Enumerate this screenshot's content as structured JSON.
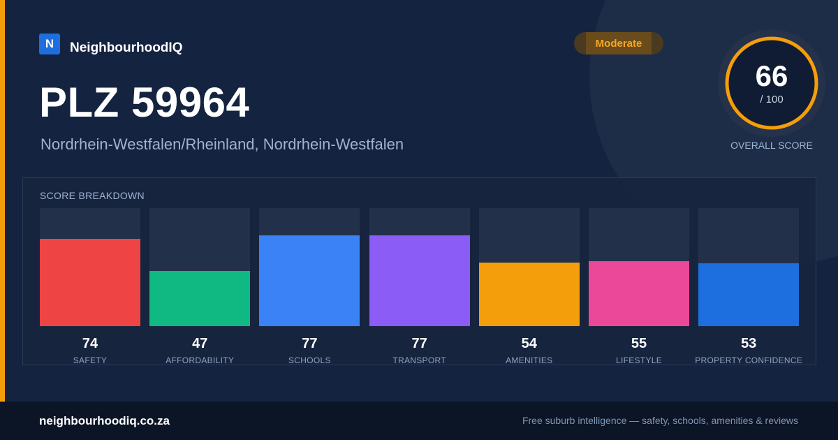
{
  "brand": {
    "logo_letter": "N",
    "name": "NeighbourhoodIQ"
  },
  "badge": {
    "label": "Moderate",
    "color": "#f5a623"
  },
  "location": {
    "title": "PLZ 59964",
    "subtitle": "Nordrhein-Westfalen/Rheinland, Nordrhein-Westfalen"
  },
  "overall": {
    "score": "66",
    "max_label": "/ 100",
    "caption": "OVERALL SCORE",
    "fraction": 0.66,
    "ring_color": "#f59e0b"
  },
  "breakdown": {
    "title": "SCORE BREAKDOWN",
    "max": 100,
    "items": [
      {
        "label": "SAFETY",
        "value": "74",
        "score": 74,
        "color": "#ef4444"
      },
      {
        "label": "AFFORDABILITY",
        "value": "47",
        "score": 47,
        "color": "#10b981"
      },
      {
        "label": "SCHOOLS",
        "value": "77",
        "score": 77,
        "color": "#3b82f6"
      },
      {
        "label": "TRANSPORT",
        "value": "77",
        "score": 77,
        "color": "#8b5cf6"
      },
      {
        "label": "AMENITIES",
        "value": "54",
        "score": 54,
        "color": "#f59e0b"
      },
      {
        "label": "LIFESTYLE",
        "value": "55",
        "score": 55,
        "color": "#ec4899"
      },
      {
        "label": "PROPERTY CONFIDENCE",
        "value": "53",
        "score": 53,
        "color": "#1d6fe0"
      }
    ]
  },
  "footer": {
    "domain": "neighbourhoodiq.co.za",
    "tagline": "Free suburb intelligence — safety, schools, amenities & reviews"
  }
}
